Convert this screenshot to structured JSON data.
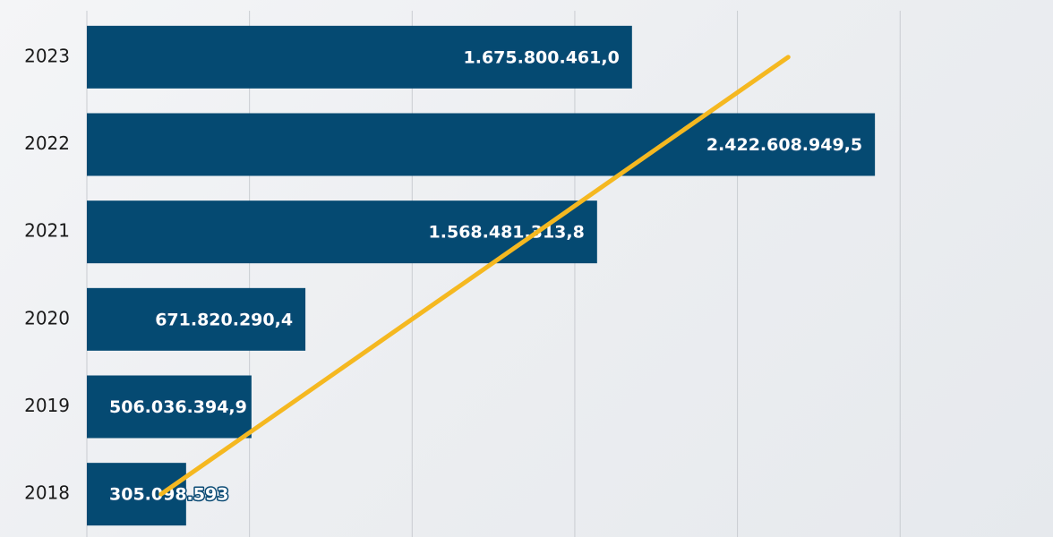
{
  "chart_data": {
    "type": "bar",
    "orientation": "horizontal",
    "categories": [
      "2023",
      "2022",
      "2021",
      "2020",
      "2019",
      "2018"
    ],
    "values": [
      1675800461.0,
      2422608949.5,
      1568481313.8,
      671820290.4,
      506036394.9,
      305098593
    ],
    "value_labels": [
      "1.675.800.461,0",
      "2.422.608.949,5",
      "1.568.481.313,8",
      "671.820.290,4",
      "506.036.394,9",
      "305.098.593"
    ],
    "color": "#054a72",
    "xlim": [
      0,
      2970000000
    ],
    "xticks": [
      0,
      500000000,
      1000000000,
      1500000000,
      2000000000,
      2500000000
    ],
    "grid": true,
    "trend": {
      "color": "#f5b820",
      "values": [
        2156000000,
        1770000000,
        1385000000,
        999000000,
        614000000,
        228000000
      ]
    }
  }
}
